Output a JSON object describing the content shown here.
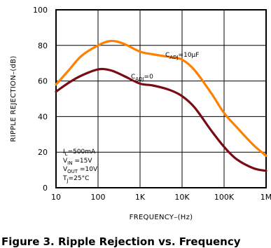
{
  "chart_data": {
    "type": "line",
    "xscale": "log",
    "xlim": [
      10,
      1000000
    ],
    "ylim": [
      0,
      100
    ],
    "xticks": [
      {
        "value": 10,
        "label": "10"
      },
      {
        "value": 100,
        "label": "100"
      },
      {
        "value": 1000,
        "label": "1K"
      },
      {
        "value": 10000,
        "label": "10K"
      },
      {
        "value": 100000,
        "label": "100K"
      },
      {
        "value": 1000000,
        "label": "1M"
      }
    ],
    "yticks": [
      {
        "value": 0,
        "label": "0"
      },
      {
        "value": 20,
        "label": "20"
      },
      {
        "value": 40,
        "label": "40"
      },
      {
        "value": 60,
        "label": "60"
      },
      {
        "value": 80,
        "label": "80"
      },
      {
        "value": 100,
        "label": "100"
      }
    ],
    "xlabel": "FREQUENCY–(Hz)",
    "ylabel": "RIPPLE REJECTION–(dB)",
    "grid": true,
    "series": [
      {
        "name": "CADJ=10µF",
        "label_parts": {
          "main": "C",
          "sub": "ADJ",
          "rest": "=10µF"
        },
        "color": "#ff7f00",
        "x": [
          10,
          20,
          40,
          100,
          200,
          400,
          1000,
          2000,
          5000,
          10000,
          20000,
          50000,
          100000,
          200000,
          500000,
          1000000
        ],
        "y": [
          58,
          66,
          74,
          80,
          82.5,
          81,
          76.5,
          75,
          73.5,
          72,
          66,
          53,
          42,
          34,
          24,
          18
        ]
      },
      {
        "name": "CADJ=0",
        "label_parts": {
          "main": "C",
          "sub": "ADJ",
          "rest": "=0"
        },
        "color": "#7a0a14",
        "x": [
          10,
          20,
          40,
          100,
          200,
          400,
          1000,
          2000,
          5000,
          10000,
          20000,
          50000,
          100000,
          200000,
          500000,
          1000000
        ],
        "y": [
          54,
          59,
          63,
          66.5,
          66,
          63,
          58.5,
          57.5,
          55,
          51.5,
          45,
          32,
          23,
          16,
          11,
          9.5
        ]
      }
    ],
    "conditions": [
      {
        "main": "I",
        "sub": "L",
        "rest": "=500mA"
      },
      {
        "main": "V",
        "sub": "IN",
        "rest": " =15V"
      },
      {
        "main": "V",
        "sub": "OUT",
        "rest": " =10V"
      },
      {
        "main": "T",
        "sub": "J",
        "rest": "=25°C"
      }
    ]
  },
  "caption": "Figure 3.  Ripple Rejection vs. Frequency"
}
